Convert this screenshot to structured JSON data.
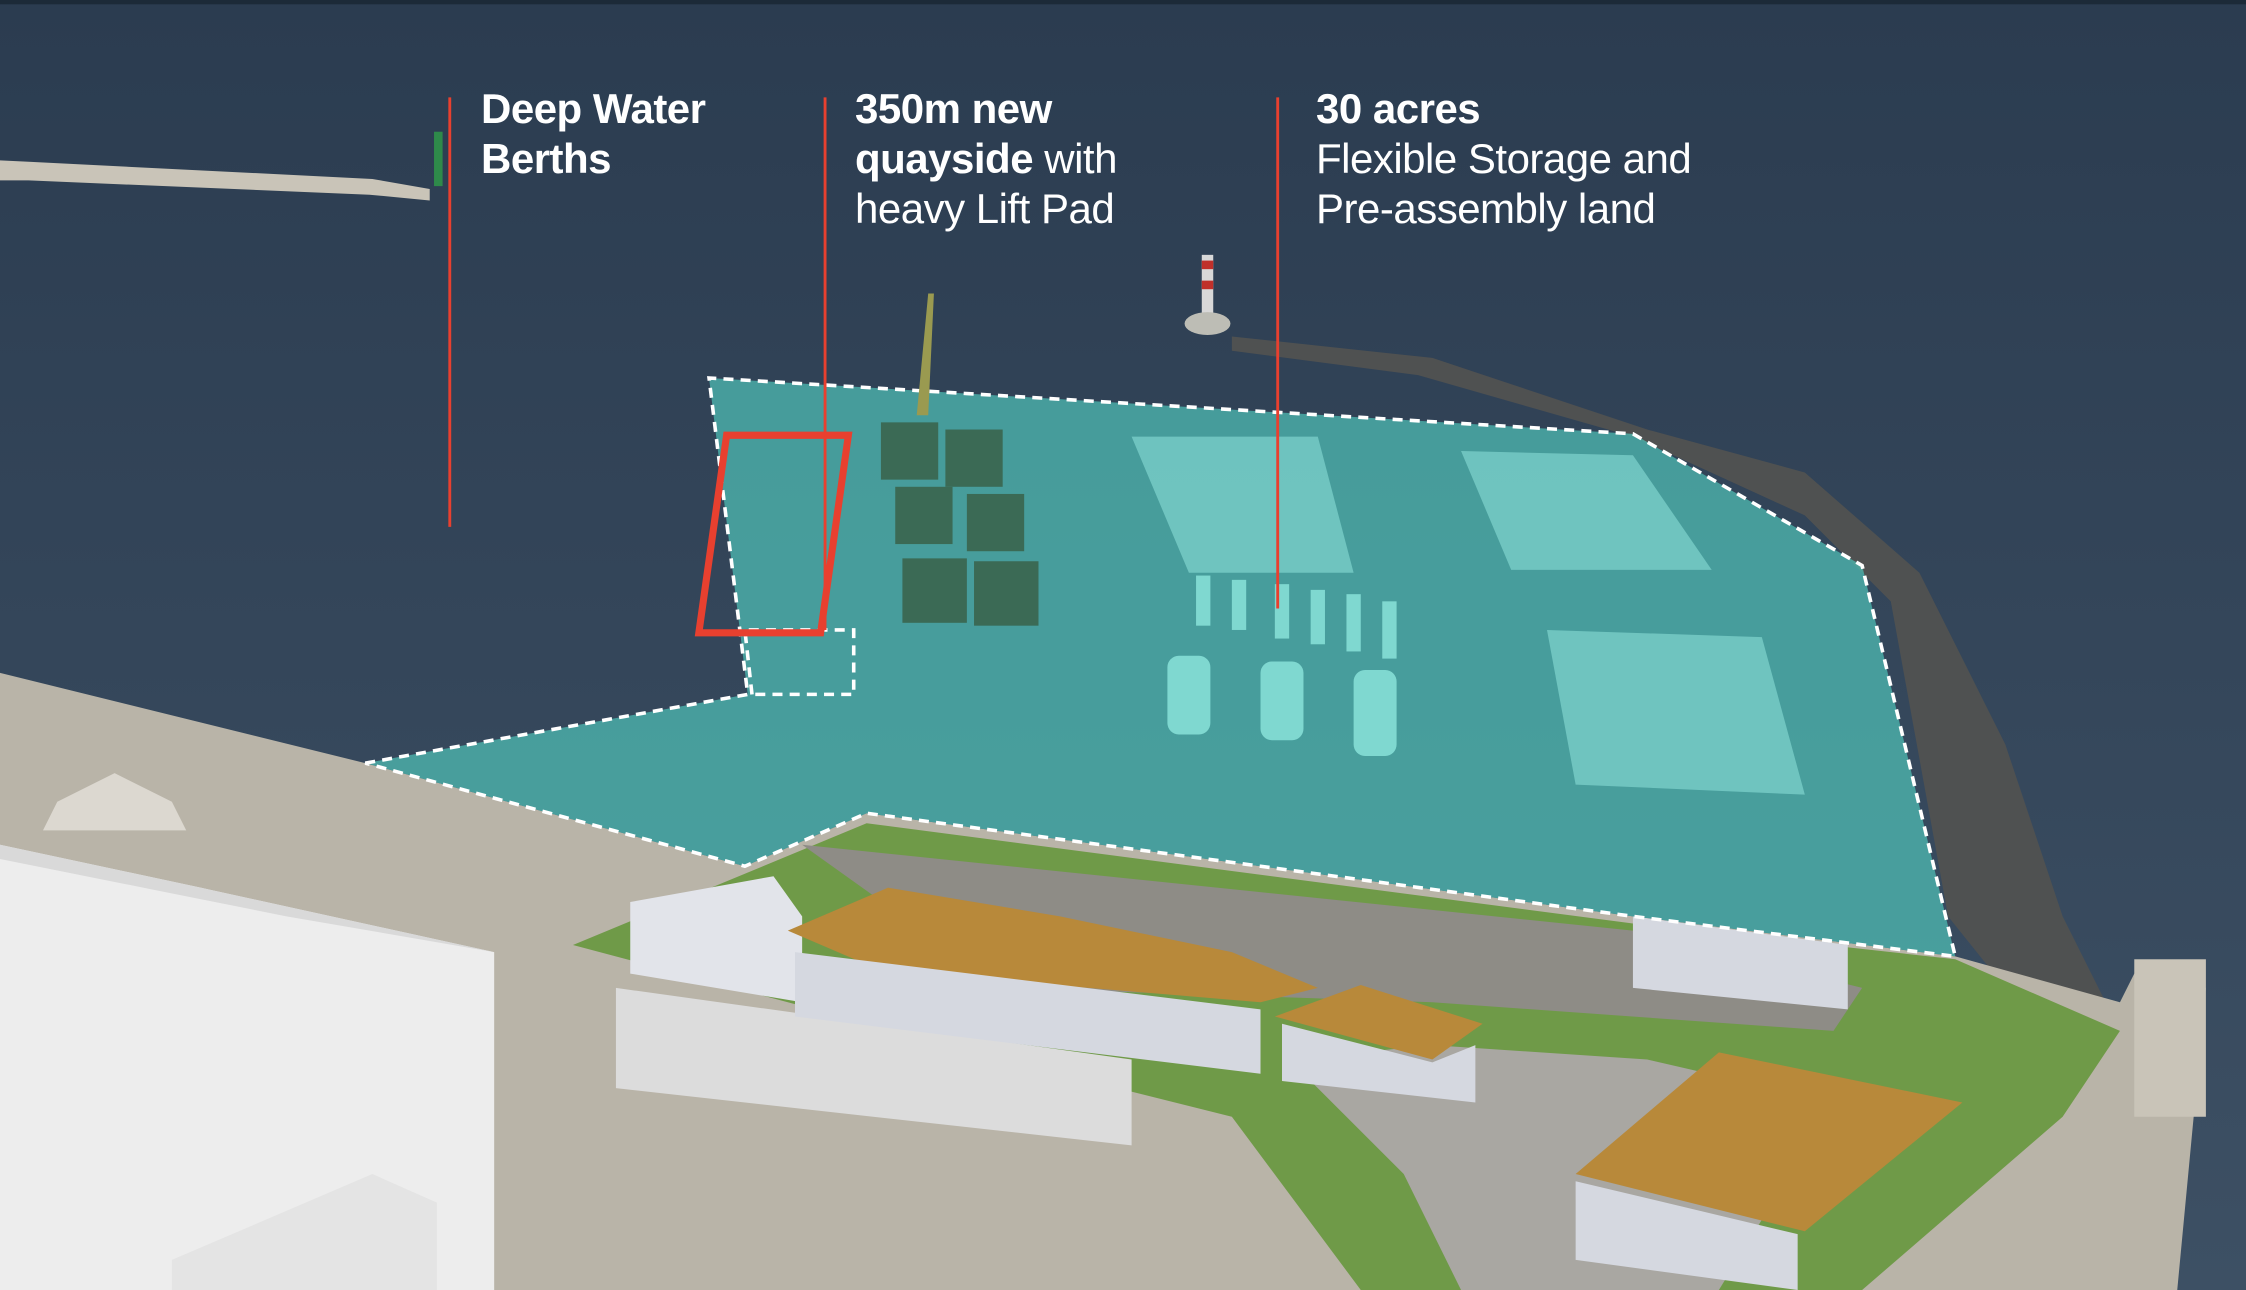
{
  "annotations": [
    {
      "bold": "Deep Water Berths"
    },
    {
      "bold": "350m new quayside",
      "text": "with heavy Lift Pad"
    },
    {
      "bold": "30 acres",
      "text": "Flexible Storage and Pre-assembly land"
    }
  ]
}
